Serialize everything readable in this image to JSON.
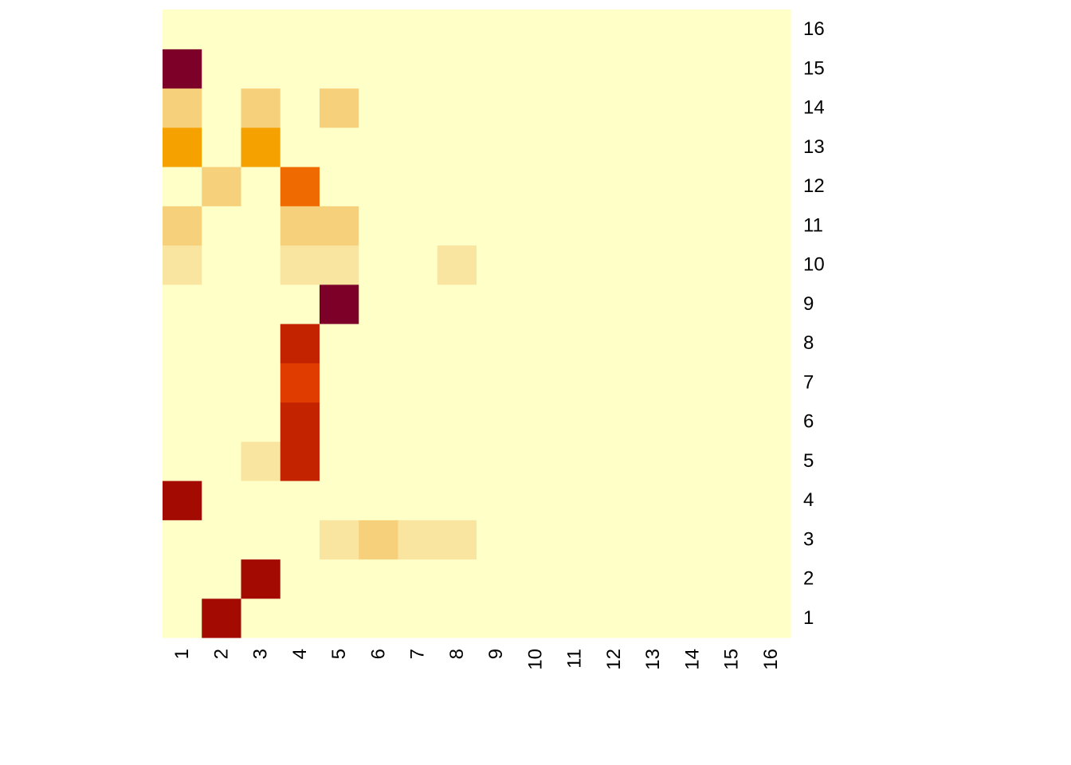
{
  "chart_data": {
    "type": "heatmap",
    "title": "",
    "xlabel": "",
    "ylabel": "",
    "x_labels": [
      "1",
      "2",
      "3",
      "4",
      "5",
      "6",
      "7",
      "8",
      "9",
      "10",
      "11",
      "12",
      "13",
      "14",
      "15",
      "16"
    ],
    "y_labels": [
      "1",
      "2",
      "3",
      "4",
      "5",
      "6",
      "7",
      "8",
      "9",
      "10",
      "11",
      "12",
      "13",
      "14",
      "15",
      "16"
    ],
    "value_range": [
      0,
      1
    ],
    "colors": {
      "0": "#ffffc8",
      "0.1": "#f9e4a0",
      "0.2": "#f7d07c",
      "0.4": "#f5a201",
      "0.5": "#ef6a00",
      "0.6": "#e03c00",
      "0.7": "#c42300",
      "0.8": "#a20a02",
      "1": "#7c0028"
    },
    "values": [
      [
        0,
        0.8,
        0,
        0,
        0,
        0,
        0,
        0,
        0,
        0,
        0,
        0,
        0,
        0,
        0,
        0
      ],
      [
        0,
        0,
        0.8,
        0,
        0,
        0,
        0,
        0,
        0,
        0,
        0,
        0,
        0,
        0,
        0,
        0
      ],
      [
        0,
        0,
        0,
        0,
        0.1,
        0.2,
        0.1,
        0.1,
        0,
        0,
        0,
        0,
        0,
        0,
        0,
        0
      ],
      [
        0.8,
        0,
        0,
        0,
        0,
        0,
        0,
        0,
        0,
        0,
        0,
        0,
        0,
        0,
        0,
        0
      ],
      [
        0,
        0,
        0.1,
        0.7,
        0,
        0,
        0,
        0,
        0,
        0,
        0,
        0,
        0,
        0,
        0,
        0
      ],
      [
        0,
        0,
        0,
        0.7,
        0,
        0,
        0,
        0,
        0,
        0,
        0,
        0,
        0,
        0,
        0,
        0
      ],
      [
        0,
        0,
        0,
        0.6,
        0,
        0,
        0,
        0,
        0,
        0,
        0,
        0,
        0,
        0,
        0,
        0
      ],
      [
        0,
        0,
        0,
        0.7,
        0,
        0,
        0,
        0,
        0,
        0,
        0,
        0,
        0,
        0,
        0,
        0
      ],
      [
        0,
        0,
        0,
        0,
        1,
        0,
        0,
        0,
        0,
        0,
        0,
        0,
        0,
        0,
        0,
        0
      ],
      [
        0.1,
        0,
        0,
        0.1,
        0.1,
        0,
        0,
        0.1,
        0,
        0,
        0,
        0,
        0,
        0,
        0,
        0
      ],
      [
        0.2,
        0,
        0,
        0.2,
        0.2,
        0,
        0,
        0,
        0,
        0,
        0,
        0,
        0,
        0,
        0,
        0
      ],
      [
        0,
        0.2,
        0,
        0.5,
        0,
        0,
        0,
        0,
        0,
        0,
        0,
        0,
        0,
        0,
        0,
        0
      ],
      [
        0.4,
        0,
        0.4,
        0,
        0,
        0,
        0,
        0,
        0,
        0,
        0,
        0,
        0,
        0,
        0,
        0
      ],
      [
        0.2,
        0,
        0.2,
        0,
        0.2,
        0,
        0,
        0,
        0,
        0,
        0,
        0,
        0,
        0,
        0,
        0
      ],
      [
        1,
        0,
        0,
        0,
        0,
        0,
        0,
        0,
        0,
        0,
        0,
        0,
        0,
        0,
        0,
        0
      ],
      [
        0,
        0,
        0,
        0,
        0,
        0,
        0,
        0,
        0,
        0,
        0,
        0,
        0,
        0,
        0,
        0
      ]
    ]
  }
}
